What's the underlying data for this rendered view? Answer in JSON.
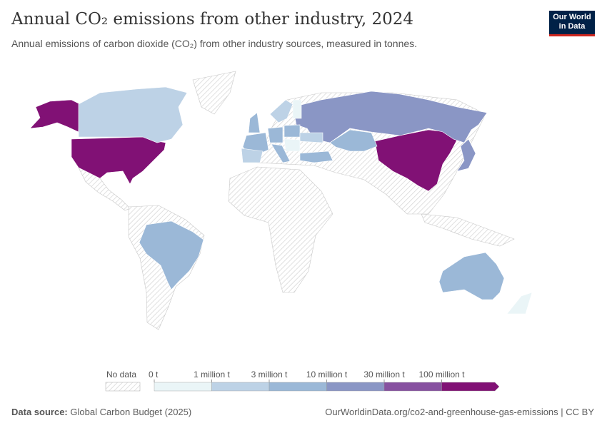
{
  "header": {
    "title": "Annual CO₂ emissions from other industry, 2024",
    "subtitle": "Annual emissions of carbon dioxide (CO₂) from other industry sources, measured in tonnes.",
    "logo_line1": "Our World",
    "logo_line2": "in Data"
  },
  "legend": {
    "no_data_label": "No data",
    "bins": [
      {
        "label": "0 t",
        "color": "#eaf5f7"
      },
      {
        "label": "1 million t",
        "color": "#bdd2e6"
      },
      {
        "label": "3 million t",
        "color": "#9bb8d7"
      },
      {
        "label": "10 million t",
        "color": "#8a96c5"
      },
      {
        "label": "30 million t",
        "color": "#8751a0"
      },
      {
        "label": "100 million t",
        "color": "#811175"
      }
    ]
  },
  "map": {
    "no_data_color": "#e8e8e8",
    "countries": [
      {
        "name": "United States",
        "bin": 5
      },
      {
        "name": "China",
        "bin": 5
      },
      {
        "name": "Russia",
        "bin": 3
      },
      {
        "name": "Japan",
        "bin": 3
      },
      {
        "name": "Canada",
        "bin": 1
      },
      {
        "name": "Brazil",
        "bin": 2
      },
      {
        "name": "Australia",
        "bin": 2
      },
      {
        "name": "Kazakhstan",
        "bin": 2
      },
      {
        "name": "Turkey",
        "bin": 2
      },
      {
        "name": "France",
        "bin": 2
      },
      {
        "name": "Germany",
        "bin": 2
      },
      {
        "name": "Poland",
        "bin": 2
      },
      {
        "name": "United Kingdom",
        "bin": 2
      },
      {
        "name": "Italy",
        "bin": 2
      },
      {
        "name": "Spain",
        "bin": 1
      },
      {
        "name": "Sweden",
        "bin": 1
      },
      {
        "name": "Ukraine",
        "bin": 1
      },
      {
        "name": "Finland",
        "bin": 0
      },
      {
        "name": "Romania",
        "bin": 0
      },
      {
        "name": "New Zealand",
        "bin": 0
      }
    ]
  },
  "footer": {
    "source_label": "Data source:",
    "source": "Global Carbon Budget (2025)",
    "url": "OurWorldinData.org/co2-and-greenhouse-gas-emissions | CC BY"
  }
}
